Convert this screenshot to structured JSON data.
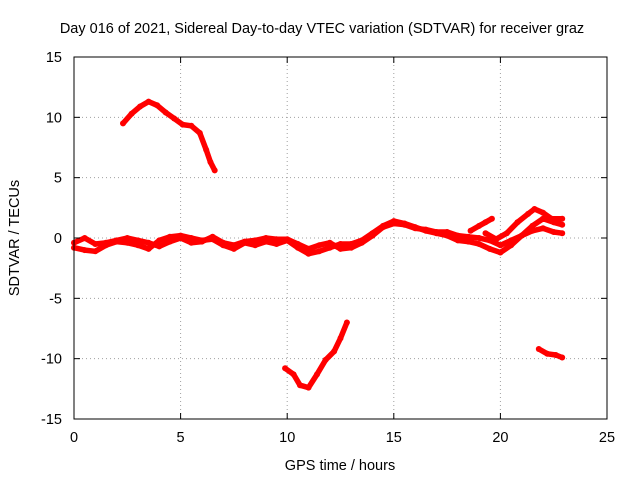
{
  "chart_data": {
    "type": "scatter",
    "title": "Day 016 of 2021, Sidereal Day-to-day VTEC variation (SDTVAR) for receiver graz",
    "xlabel": "GPS time / hours",
    "ylabel": "SDTVAR / TECUs",
    "xlim": [
      0,
      25
    ],
    "ylim": [
      -15,
      15
    ],
    "x_ticks": [
      0,
      5,
      10,
      15,
      20,
      25
    ],
    "y_ticks": [
      -15,
      -10,
      -5,
      0,
      5,
      10,
      15
    ],
    "x_tick_labels": [
      "0",
      "5",
      "10",
      "15",
      "20",
      "25"
    ],
    "y_tick_labels": [
      "-15",
      "-10",
      "-5",
      "0",
      "5",
      "10",
      "15"
    ],
    "grid": true,
    "marker_color": "#ff0000",
    "series": [
      {
        "name": "track-main-a",
        "x": [
          0,
          0.5,
          1,
          1.5,
          2,
          2.5,
          3,
          3.5,
          4,
          4.5,
          5,
          5.5,
          6,
          6.5,
          7,
          7.5,
          8,
          8.5,
          9,
          9.5,
          10,
          10.5,
          11,
          11.5,
          12,
          12.5,
          13,
          13.5,
          14,
          14.5,
          15,
          15.5,
          16,
          16.5,
          17,
          17.5,
          18,
          18.5,
          19,
          19.5,
          20,
          20.5,
          21,
          21.5,
          22,
          22.5,
          22.9
        ],
        "y": [
          -0.4,
          0,
          -0.5,
          -0.4,
          -0.2,
          0,
          -0.2,
          -0.4,
          -0.7,
          -0.3,
          0,
          -0.4,
          -0.3,
          0.1,
          -0.4,
          -0.6,
          -0.3,
          -0.2,
          0,
          -0.1,
          -0.1,
          -0.5,
          -0.9,
          -0.6,
          -0.4,
          -0.9,
          -0.8,
          -0.4,
          0.2,
          0.9,
          1.2,
          1.1,
          0.8,
          0.7,
          0.5,
          0.5,
          0.2,
          0.1,
          0,
          -0.2,
          -0.6,
          -0.2,
          0.2,
          0.6,
          0.8,
          0.5,
          0.4
        ]
      },
      {
        "name": "track-main-b",
        "x": [
          0,
          0.5,
          1,
          1.5,
          2,
          2.5,
          3,
          3.5,
          4,
          4.5,
          5,
          5.5,
          6,
          6.5,
          7,
          7.5,
          8,
          8.5,
          9,
          9.5,
          10,
          10.5,
          11,
          11.5,
          12,
          12.5,
          13,
          13.5,
          14,
          14.5,
          15,
          15.5,
          16,
          16.5,
          17,
          17.5,
          18,
          18.5,
          19,
          19.5,
          20,
          20.5,
          21,
          21.5,
          22,
          22.5,
          22.9
        ],
        "y": [
          -0.8,
          -1,
          -1.1,
          -0.6,
          -0.3,
          -0.4,
          -0.6,
          -0.9,
          -0.2,
          0.1,
          0.2,
          0,
          -0.2,
          -0.1,
          -0.6,
          -0.9,
          -0.4,
          -0.6,
          -0.3,
          -0.5,
          -0.2,
          -0.8,
          -1.3,
          -1.1,
          -0.8,
          -0.5,
          -0.5,
          -0.2,
          0.4,
          1.0,
          1.4,
          1.2,
          0.9,
          0.6,
          0.4,
          0.2,
          -0.2,
          -0.3,
          -0.5,
          -0.9,
          -1.2,
          -0.6,
          0.2,
          1.0,
          1.6,
          1.3,
          1.1
        ]
      },
      {
        "name": "track-upper-arc",
        "x": [
          2.3,
          2.7,
          3.1,
          3.5,
          3.9,
          4.3,
          4.7,
          5.1,
          5.5,
          5.9,
          6.2,
          6.4,
          6.6
        ],
        "y": [
          9.5,
          10.3,
          10.9,
          11.3,
          11.0,
          10.4,
          9.9,
          9.4,
          9.3,
          8.7,
          7.3,
          6.3,
          5.6
        ]
      },
      {
        "name": "track-lower-arc",
        "x": [
          9.9,
          10.3,
          10.6,
          11.0,
          11.4,
          11.8,
          12.2,
          12.5,
          12.8
        ],
        "y": [
          -10.8,
          -11.3,
          -12.2,
          -12.4,
          -11.3,
          -10.1,
          -9.4,
          -8.3,
          -7.0
        ]
      },
      {
        "name": "track-late-high",
        "x": [
          19.3,
          19.8,
          20.3,
          20.8,
          21.3,
          21.6,
          22.0,
          22.4,
          22.9
        ],
        "y": [
          0.4,
          -0.1,
          0.4,
          1.3,
          2.0,
          2.4,
          2.1,
          1.6,
          1.6
        ]
      },
      {
        "name": "track-late-spike",
        "x": [
          18.6,
          19.0,
          19.3,
          19.6
        ],
        "y": [
          0.6,
          1.0,
          1.3,
          1.6
        ]
      },
      {
        "name": "track-late-low",
        "x": [
          21.8,
          22.2,
          22.6,
          22.9
        ],
        "y": [
          -9.2,
          -9.6,
          -9.7,
          -9.9
        ]
      }
    ]
  }
}
